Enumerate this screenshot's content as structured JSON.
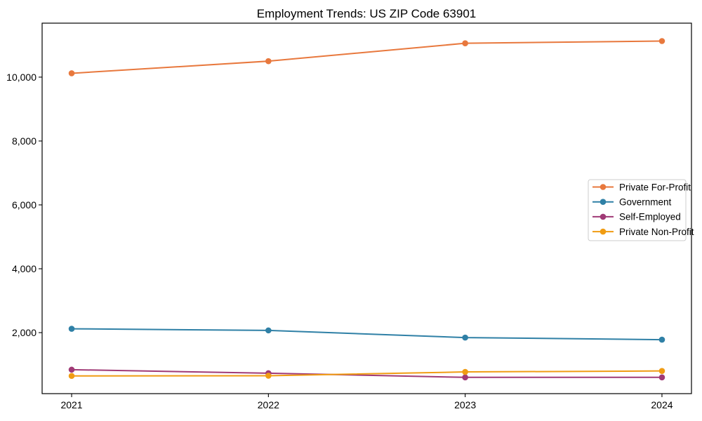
{
  "chart_data": {
    "type": "line",
    "title": "Employment Trends: US ZIP Code 63901",
    "xlabel": "",
    "ylabel": "",
    "x": [
      2021,
      2022,
      2023,
      2024
    ],
    "x_tick_labels": [
      "2021",
      "2022",
      "2023",
      "2024"
    ],
    "y_ticks": [
      2000,
      4000,
      6000,
      8000,
      10000
    ],
    "y_tick_labels": [
      "2,000",
      "4,000",
      "6,000",
      "8,000",
      "10,000"
    ],
    "xlim": [
      2020.85,
      2024.15
    ],
    "ylim": [
      90,
      11690
    ],
    "grid": false,
    "legend_position": "center-right",
    "marker": "circle",
    "series": [
      {
        "name": "Private For-Profit",
        "color": "#e8783d",
        "values": [
          10120,
          10500,
          11060,
          11130
        ]
      },
      {
        "name": "Government",
        "color": "#2f80a6",
        "values": [
          2120,
          2070,
          1845,
          1780
        ]
      },
      {
        "name": "Self-Employed",
        "color": "#a03a76",
        "values": [
          840,
          730,
          600,
          600
        ]
      },
      {
        "name": "Private Non-Profit",
        "color": "#f09c13",
        "values": [
          645,
          650,
          770,
          800
        ]
      }
    ],
    "axis_color": "#000000",
    "legend_border_color": "#cccccc",
    "background_color": "#ffffff"
  }
}
